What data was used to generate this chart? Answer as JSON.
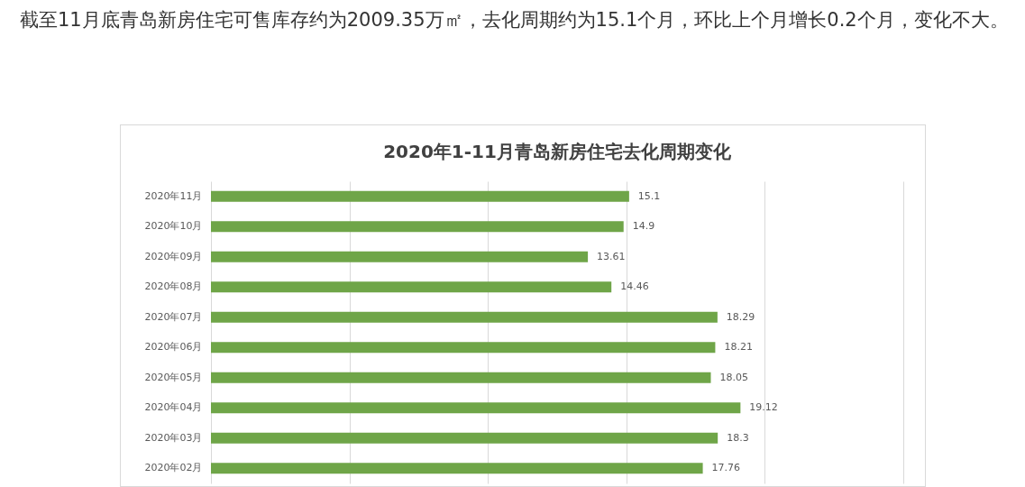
{
  "chart_data": {
    "type": "bar",
    "orientation": "horizontal",
    "title": "2020年1-11月青岛新房住宅去化周期变化",
    "annotations": [
      "截至11月底青岛新房住宅可售库存约为2009.35万㎡，去化周期约为15.1个月，环比上个月增长0.2个月，变化不大。"
    ],
    "categories": [
      "2020年11月",
      "2020年10月",
      "2020年09月",
      "2020年08月",
      "2020年07月",
      "2020年06月",
      "2020年05月",
      "2020年04月",
      "2020年03月",
      "2020年02月"
    ],
    "values": [
      15.1,
      14.9,
      13.61,
      14.46,
      18.29,
      18.21,
      18.05,
      19.12,
      18.3,
      17.76
    ],
    "color": "#6fa548",
    "xlim": [
      0,
      25
    ],
    "xticks": [
      {
        "value": 0,
        "label": null
      },
      {
        "value": 5,
        "label": null
      },
      {
        "value": 10,
        "label": null
      },
      {
        "value": 15,
        "label": null
      },
      {
        "value": 20,
        "label": null
      },
      {
        "value": 25,
        "label": null
      }
    ],
    "grid": "x",
    "tick_labels": "y",
    "data_labels": true
  }
}
